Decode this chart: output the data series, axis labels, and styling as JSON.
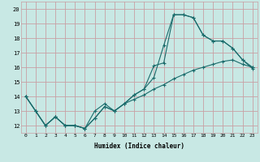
{
  "xlabel": "Humidex (Indice chaleur)",
  "bg_color": "#c8e8e4",
  "grid_color": "#c8a0a4",
  "line_color": "#1a6b6b",
  "xlim": [
    -0.5,
    23.5
  ],
  "ylim": [
    11.5,
    20.5
  ],
  "xticks": [
    0,
    1,
    2,
    3,
    4,
    5,
    6,
    7,
    8,
    9,
    10,
    11,
    12,
    13,
    14,
    15,
    16,
    17,
    18,
    19,
    20,
    21,
    22,
    23
  ],
  "yticks": [
    12,
    13,
    14,
    15,
    16,
    17,
    18,
    19,
    20
  ],
  "lines": [
    [
      14,
      13,
      12,
      12.6,
      12,
      12,
      11.8,
      13.0,
      13.5,
      13.0,
      13.5,
      13.8,
      14.1,
      14.5,
      14.8,
      15.2,
      15.5,
      15.8,
      16.0,
      16.2,
      16.4,
      16.5,
      16.2,
      16.0
    ],
    [
      14,
      13,
      12,
      12.6,
      12,
      12,
      11.8,
      12.5,
      13.3,
      13.0,
      13.5,
      14.1,
      14.5,
      15.3,
      17.5,
      19.6,
      19.6,
      19.4,
      18.2,
      17.8,
      17.8,
      17.3,
      16.5,
      16.0
    ],
    [
      14,
      13,
      12,
      12.6,
      12,
      12,
      11.8,
      12.5,
      13.3,
      13.0,
      13.5,
      14.1,
      14.5,
      16.1,
      16.3,
      19.6,
      19.6,
      19.4,
      18.2,
      17.8,
      17.8,
      17.3,
      16.5,
      15.9
    ]
  ]
}
